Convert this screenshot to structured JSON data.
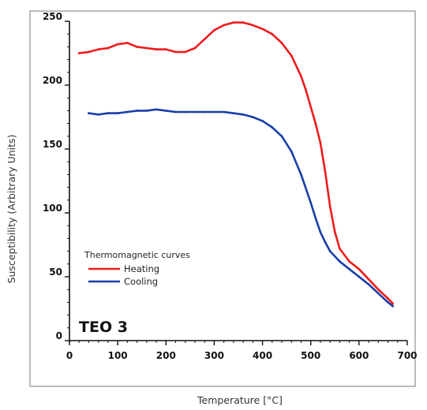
{
  "chart_data": {
    "type": "line",
    "title": "",
    "xlabel": "Temperature [°C]",
    "ylabel": "Susceptibility (Arbitrary Units)",
    "xlim": [
      0,
      700
    ],
    "ylim": [
      0,
      250
    ],
    "x_ticks": [
      0,
      100,
      200,
      300,
      400,
      500,
      600,
      700
    ],
    "y_ticks": [
      0,
      50,
      100,
      150,
      200,
      250
    ],
    "grid": false,
    "legend": {
      "title": "Thermomagnetic curves",
      "placement": "lower-left"
    },
    "annotation": "TEO 3",
    "series": [
      {
        "name": "Heating",
        "color": "#ee1c1c",
        "x": [
          20,
          40,
          60,
          80,
          100,
          120,
          140,
          160,
          180,
          200,
          220,
          240,
          260,
          280,
          300,
          320,
          340,
          360,
          380,
          400,
          420,
          440,
          460,
          480,
          490,
          500,
          510,
          520,
          530,
          540,
          550,
          560,
          580,
          600,
          620,
          640,
          660,
          670
        ],
        "y": [
          225,
          226,
          228,
          229,
          232,
          233,
          230,
          229,
          228,
          228,
          226,
          226,
          229,
          236,
          243,
          247,
          249,
          249,
          247,
          244,
          240,
          233,
          223,
          207,
          196,
          183,
          170,
          155,
          132,
          105,
          85,
          72,
          62,
          56,
          48,
          40,
          33,
          29
        ]
      },
      {
        "name": "Cooling",
        "color": "#1a3fa8",
        "x": [
          40,
          60,
          80,
          100,
          120,
          140,
          160,
          180,
          200,
          220,
          240,
          260,
          280,
          300,
          320,
          340,
          360,
          380,
          400,
          420,
          440,
          460,
          480,
          500,
          510,
          520,
          530,
          540,
          560,
          580,
          600,
          620,
          640,
          660,
          670
        ],
        "y": [
          178,
          177,
          178,
          178,
          179,
          180,
          180,
          181,
          180,
          179,
          179,
          179,
          179,
          179,
          179,
          178,
          177,
          175,
          172,
          167,
          160,
          148,
          130,
          108,
          96,
          85,
          77,
          70,
          62,
          56,
          50,
          44,
          37,
          30,
          27
        ]
      }
    ]
  }
}
